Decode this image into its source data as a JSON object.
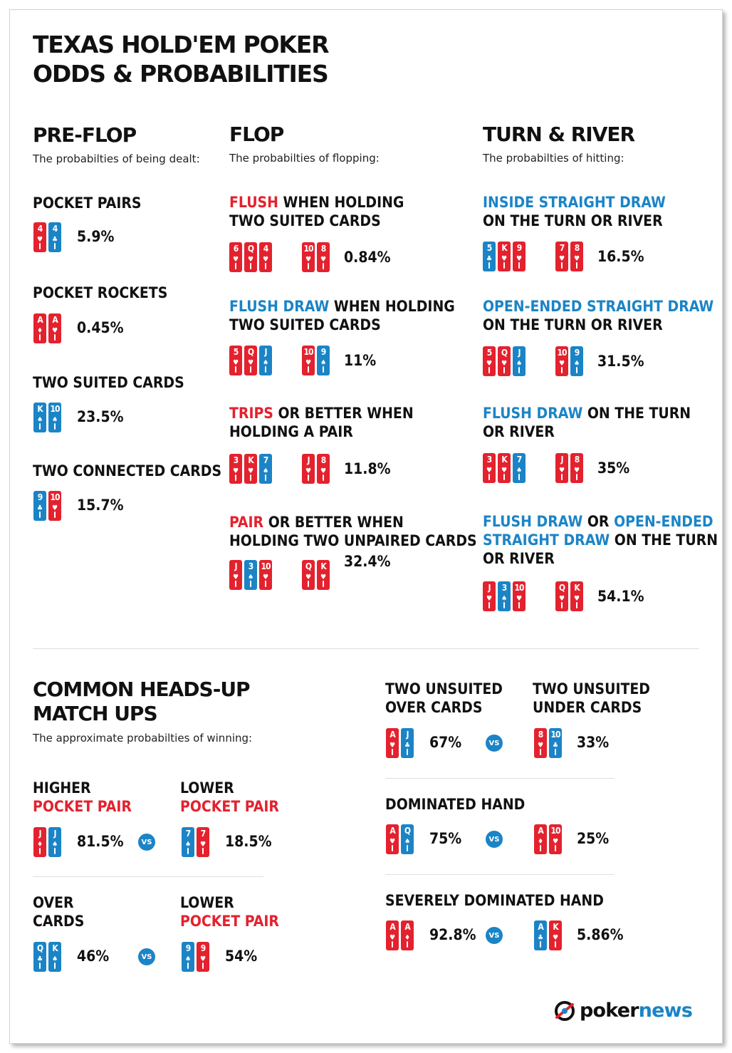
{
  "title_line1": "TEXAS HOLD'EM POKER",
  "title_line2": "ODDS & PROBABILITIES",
  "preflop": {
    "heading": "PRE-FLOP",
    "subtitle": "The probabilties of being dealt:",
    "items": [
      {
        "label": "POCKET PAIRS",
        "value": "5.9%",
        "cards": [
          {
            "rank": "4",
            "suit": "♥",
            "color": "red"
          },
          {
            "rank": "4",
            "suit": "♣",
            "color": "blue"
          }
        ]
      },
      {
        "label": "POCKET ROCKETS",
        "value": "0.45%",
        "cards": [
          {
            "rank": "A",
            "suit": "♦",
            "color": "red"
          },
          {
            "rank": "A",
            "suit": "♥",
            "color": "red"
          }
        ]
      },
      {
        "label": "TWO SUITED CARDS",
        "value": "23.5%",
        "cards": [
          {
            "rank": "K",
            "suit": "♠",
            "color": "blue"
          },
          {
            "rank": "10",
            "suit": "♠",
            "color": "blue"
          }
        ]
      },
      {
        "label": "TWO CONNECTED CARDS",
        "value": "15.7%",
        "cards": [
          {
            "rank": "9",
            "suit": "♣",
            "color": "blue"
          },
          {
            "rank": "10",
            "suit": "♥",
            "color": "red"
          }
        ]
      }
    ]
  },
  "flop": {
    "heading": "FLOP",
    "subtitle": "The probabilties of flopping:",
    "items": [
      {
        "highlight": "FLUSH",
        "rest": " WHEN HOLDING",
        "line2": "TWO SUITED CARDS",
        "value": "0.84%",
        "board": [
          {
            "rank": "6",
            "suit": "♥",
            "color": "red"
          },
          {
            "rank": "Q",
            "suit": "♥",
            "color": "red"
          },
          {
            "rank": "4",
            "suit": "♥",
            "color": "red"
          }
        ],
        "hand": [
          {
            "rank": "10",
            "suit": "♥",
            "color": "red"
          },
          {
            "rank": "8",
            "suit": "♥",
            "color": "red"
          }
        ]
      },
      {
        "highlight": "FLUSH DRAW",
        "rest": " WHEN HOLDING",
        "line2": "TWO SUITED CARDS",
        "value": "11%",
        "board": [
          {
            "rank": "5",
            "suit": "♥",
            "color": "red"
          },
          {
            "rank": "Q",
            "suit": "♥",
            "color": "red"
          },
          {
            "rank": "J",
            "suit": "♠",
            "color": "blue"
          }
        ],
        "hand": [
          {
            "rank": "10",
            "suit": "♥",
            "color": "red"
          },
          {
            "rank": "9",
            "suit": "♠",
            "color": "blue"
          }
        ]
      },
      {
        "highlight": "TRIPS",
        "rest": " OR BETTER WHEN",
        "line2": "HOLDING A PAIR",
        "value": "11.8%",
        "board": [
          {
            "rank": "3",
            "suit": "♥",
            "color": "red"
          },
          {
            "rank": "K",
            "suit": "♥",
            "color": "red"
          },
          {
            "rank": "7",
            "suit": "♠",
            "color": "blue"
          }
        ],
        "hand": [
          {
            "rank": "J",
            "suit": "♥",
            "color": "red"
          },
          {
            "rank": "8",
            "suit": "♥",
            "color": "red"
          }
        ]
      },
      {
        "highlight": "PAIR",
        "rest": " OR BETTER WHEN",
        "line2": "HOLDING TWO UNPAIRED CARDS",
        "value": "32.4%",
        "board": [
          {
            "rank": "J",
            "suit": "♥",
            "color": "red"
          },
          {
            "rank": "3",
            "suit": "♠",
            "color": "blue"
          },
          {
            "rank": "10",
            "suit": "♥",
            "color": "red"
          }
        ],
        "hand": [
          {
            "rank": "Q",
            "suit": "♥",
            "color": "red"
          },
          {
            "rank": "K",
            "suit": "♥",
            "color": "red"
          }
        ]
      }
    ]
  },
  "turnriver": {
    "heading": "TURN & RIVER",
    "subtitle": "The probabilties of hitting:",
    "items": [
      {
        "hl1": "INSIDE STRAIGHT DRAW",
        "line2": "ON THE TURN OR RIVER",
        "value": "16.5%",
        "board": [
          {
            "rank": "5",
            "suit": "♣",
            "color": "blue"
          },
          {
            "rank": "K",
            "suit": "♥",
            "color": "red"
          },
          {
            "rank": "9",
            "suit": "♥",
            "color": "red"
          }
        ],
        "hand": [
          {
            "rank": "7",
            "suit": "♥",
            "color": "red"
          },
          {
            "rank": "8",
            "suit": "♥",
            "color": "red"
          }
        ]
      },
      {
        "hl1": "OPEN-ENDED STRAIGHT DRAW",
        "line2": "ON THE TURN OR RIVER",
        "value": "31.5%",
        "board": [
          {
            "rank": "5",
            "suit": "♥",
            "color": "red"
          },
          {
            "rank": "Q",
            "suit": "♥",
            "color": "red"
          },
          {
            "rank": "J",
            "suit": "♠",
            "color": "blue"
          }
        ],
        "hand": [
          {
            "rank": "10",
            "suit": "♥",
            "color": "red"
          },
          {
            "rank": "9",
            "suit": "♠",
            "color": "blue"
          }
        ]
      },
      {
        "hl1": "FLUSH DRAW",
        "rest1": " ON THE TURN",
        "line2": "OR RIVER",
        "value": "35%",
        "board": [
          {
            "rank": "3",
            "suit": "♥",
            "color": "red"
          },
          {
            "rank": "K",
            "suit": "♥",
            "color": "red"
          },
          {
            "rank": "7",
            "suit": "♠",
            "color": "blue"
          }
        ],
        "hand": [
          {
            "rank": "J",
            "suit": "♥",
            "color": "red"
          },
          {
            "rank": "8",
            "suit": "♥",
            "color": "red"
          }
        ]
      },
      {
        "hl1": "FLUSH DRAW",
        "rest1": " OR ",
        "hl1b": "OPEN-ENDED",
        "hl2": "STRAIGHT DRAW",
        "rest2": " ON THE TURN",
        "line3": "OR RIVER",
        "value": "54.1%",
        "board": [
          {
            "rank": "J",
            "suit": "♥",
            "color": "red"
          },
          {
            "rank": "3",
            "suit": "♠",
            "color": "blue"
          },
          {
            "rank": "10",
            "suit": "♥",
            "color": "red"
          }
        ],
        "hand": [
          {
            "rank": "Q",
            "suit": "♥",
            "color": "red"
          },
          {
            "rank": "K",
            "suit": "♥",
            "color": "red"
          }
        ]
      }
    ]
  },
  "headsup": {
    "heading_line1": "COMMON HEADS-UP",
    "heading_line2": "MATCH UPS",
    "subtitle": "The approximate probabilties of winning:",
    "vs_label": "VS",
    "matchups": [
      {
        "a_line1": "HIGHER",
        "a_line2": "POCKET PAIR",
        "a_value": "81.5%",
        "a_cards": [
          {
            "rank": "J",
            "suit": "♦",
            "color": "red"
          },
          {
            "rank": "J",
            "suit": "♠",
            "color": "blue"
          }
        ],
        "b_line1": "LOWER",
        "b_line2": "POCKET PAIR",
        "b_value": "18.5%",
        "b_cards": [
          {
            "rank": "7",
            "suit": "♠",
            "color": "blue"
          },
          {
            "rank": "7",
            "suit": "♥",
            "color": "red"
          }
        ]
      },
      {
        "a_line1": "OVER",
        "a_line2": "CARDS",
        "a_value": "46%",
        "a_cards": [
          {
            "rank": "Q",
            "suit": "♣",
            "color": "blue"
          },
          {
            "rank": "K",
            "suit": "♠",
            "color": "blue"
          }
        ],
        "b_line1": "LOWER",
        "b_line2": "POCKET PAIR",
        "b_value": "54%",
        "b_cards": [
          {
            "rank": "9",
            "suit": "♠",
            "color": "blue"
          },
          {
            "rank": "9",
            "suit": "♥",
            "color": "red"
          }
        ]
      },
      {
        "a_line1": "TWO UNSUITED",
        "a_line2": "OVER CARDS",
        "a_value": "67%",
        "a_cards": [
          {
            "rank": "A",
            "suit": "♥",
            "color": "red"
          },
          {
            "rank": "J",
            "suit": "♣",
            "color": "blue"
          }
        ],
        "b_line1": "TWO UNSUITED",
        "b_line2": "UNDER CARDS",
        "b_value": "33%",
        "b_cards": [
          {
            "rank": "8",
            "suit": "♥",
            "color": "red"
          },
          {
            "rank": "10",
            "suit": "♣",
            "color": "blue"
          }
        ]
      },
      {
        "label": "DOMINATED HAND",
        "a_value": "75%",
        "a_cards": [
          {
            "rank": "A",
            "suit": "♥",
            "color": "red"
          },
          {
            "rank": "Q",
            "suit": "♠",
            "color": "blue"
          }
        ],
        "b_value": "25%",
        "b_cards": [
          {
            "rank": "A",
            "suit": "♦",
            "color": "red"
          },
          {
            "rank": "10",
            "suit": "♥",
            "color": "red"
          }
        ]
      },
      {
        "label": "SEVERELY DOMINATED HAND",
        "a_value": "92.8%",
        "a_cards": [
          {
            "rank": "A",
            "suit": "♥",
            "color": "red"
          },
          {
            "rank": "A",
            "suit": "♦",
            "color": "red"
          }
        ],
        "b_value": "5.86%",
        "b_cards": [
          {
            "rank": "A",
            "suit": "♣",
            "color": "blue"
          },
          {
            "rank": "K",
            "suit": "♥",
            "color": "red"
          }
        ]
      }
    ]
  },
  "brand": {
    "part1": "poker",
    "part2": "news"
  },
  "colors": {
    "red": "#e3222e",
    "blue": "#1b84c6",
    "text": "#111111"
  }
}
